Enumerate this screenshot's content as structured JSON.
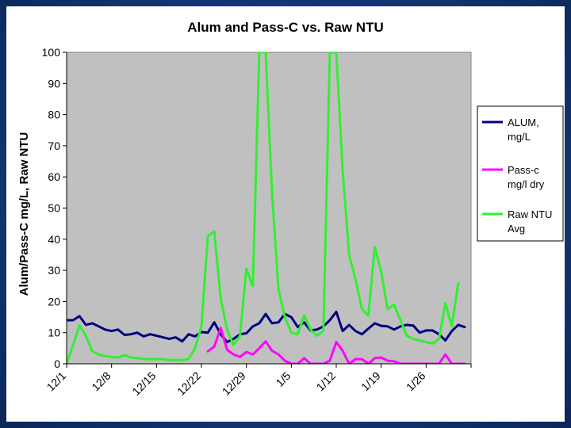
{
  "chart_data": {
    "type": "line",
    "title": "Alum and Pass-C vs. Raw NTU",
    "ylabel": "Alum/Pass-C mg/L, Raw NTU",
    "xlabel": "",
    "ylim": [
      0,
      100
    ],
    "yticks": [
      0,
      10,
      20,
      30,
      40,
      50,
      60,
      70,
      80,
      90,
      100
    ],
    "xtick_labels": [
      "12/1",
      "12/8",
      "12/15",
      "12/22",
      "12/29",
      "1/5",
      "1/12",
      "1/19",
      "1/26"
    ],
    "xtick_days": [
      0,
      7,
      14,
      21,
      28,
      35,
      42,
      49,
      56
    ],
    "x_days_range": [
      0,
      63
    ],
    "grid": false,
    "legend": "right",
    "background": "#c0c0c0",
    "series": [
      {
        "name": "ALUM, mg/L",
        "legend_lines": [
          "ALUM,",
          "mg/L"
        ],
        "color": "#000080",
        "points": [
          [
            0,
            14
          ],
          [
            1,
            14
          ],
          [
            2,
            15.3
          ],
          [
            3,
            12.5
          ],
          [
            4,
            13
          ],
          [
            5,
            12
          ],
          [
            6,
            11
          ],
          [
            7,
            10.5
          ],
          [
            8,
            11
          ],
          [
            9,
            9.3
          ],
          [
            10,
            9.5
          ],
          [
            11,
            10
          ],
          [
            12,
            8.8
          ],
          [
            13,
            9.5
          ],
          [
            14,
            9
          ],
          [
            15,
            8.5
          ],
          [
            16,
            8
          ],
          [
            17,
            8.5
          ],
          [
            18,
            7.2
          ],
          [
            19,
            9.5
          ],
          [
            20,
            8.8
          ],
          [
            21,
            10.2
          ],
          [
            22,
            10
          ],
          [
            23,
            13.3
          ],
          [
            24,
            9.5
          ],
          [
            25,
            7
          ],
          [
            26,
            8
          ],
          [
            27,
            9.5
          ],
          [
            28,
            9.8
          ],
          [
            29,
            12
          ],
          [
            30,
            13
          ],
          [
            31,
            16
          ],
          [
            32,
            13
          ],
          [
            33,
            13.3
          ],
          [
            34,
            16
          ],
          [
            35,
            15
          ],
          [
            36,
            11.8
          ],
          [
            37,
            13.3
          ],
          [
            38,
            10.7
          ],
          [
            39,
            11
          ],
          [
            40,
            12
          ],
          [
            41,
            14
          ],
          [
            42,
            16.7
          ],
          [
            43,
            10.5
          ],
          [
            44,
            12.5
          ],
          [
            45,
            10.5
          ],
          [
            46,
            9.5
          ],
          [
            47,
            11.3
          ],
          [
            48,
            13
          ],
          [
            49,
            12.2
          ],
          [
            50,
            12
          ],
          [
            51,
            11
          ],
          [
            52,
            12
          ],
          [
            53,
            12.5
          ],
          [
            54,
            12.3
          ],
          [
            55,
            10
          ],
          [
            56,
            10.7
          ],
          [
            57,
            10.7
          ],
          [
            58,
            9.5
          ],
          [
            59,
            7.5
          ],
          [
            60,
            10.5
          ],
          [
            61,
            12.5
          ],
          [
            62,
            11.8
          ]
        ]
      },
      {
        "name": "Pass-c mg/l dry",
        "legend_lines": [
          "Pass-c",
          "mg/l dry"
        ],
        "color": "#ff00ff",
        "points": [
          [
            22,
            4
          ],
          [
            23,
            5.5
          ],
          [
            24,
            11.5
          ],
          [
            25,
            4.5
          ],
          [
            26,
            3
          ],
          [
            27,
            2.2
          ],
          [
            28,
            3.8
          ],
          [
            29,
            3
          ],
          [
            30,
            5
          ],
          [
            31,
            7.2
          ],
          [
            32,
            4.2
          ],
          [
            33,
            3
          ],
          [
            34,
            1
          ],
          [
            35,
            0
          ],
          [
            36,
            0
          ],
          [
            37,
            1.8
          ],
          [
            38,
            0
          ],
          [
            39,
            0
          ],
          [
            40,
            0
          ],
          [
            41,
            1
          ],
          [
            42,
            7
          ],
          [
            43,
            4.2
          ],
          [
            44,
            0
          ],
          [
            45,
            1.5
          ],
          [
            46,
            1.5
          ],
          [
            47,
            0
          ],
          [
            48,
            1.8
          ],
          [
            49,
            2
          ],
          [
            50,
            1
          ],
          [
            51,
            0.8
          ],
          [
            52,
            0
          ],
          [
            53,
            0
          ],
          [
            54,
            0
          ],
          [
            55,
            0
          ],
          [
            56,
            0
          ],
          [
            57,
            0
          ],
          [
            58,
            0
          ],
          [
            59,
            3
          ],
          [
            60,
            0
          ],
          [
            61,
            0
          ],
          [
            62,
            0
          ]
        ]
      },
      {
        "name": "Raw NTU Avg",
        "legend_lines": [
          "Raw NTU",
          "Avg"
        ],
        "color": "#33ee33",
        "points": [
          [
            0,
            0
          ],
          [
            1,
            6
          ],
          [
            2,
            12.3
          ],
          [
            3,
            9
          ],
          [
            4,
            4
          ],
          [
            5,
            3
          ],
          [
            6,
            2.5
          ],
          [
            7,
            2.2
          ],
          [
            8,
            2
          ],
          [
            9,
            2.8
          ],
          [
            10,
            2
          ],
          [
            11,
            1.8
          ],
          [
            12,
            1.5
          ],
          [
            13,
            1.5
          ],
          [
            14,
            1.5
          ],
          [
            15,
            1.5
          ],
          [
            16,
            1.2
          ],
          [
            17,
            1.2
          ],
          [
            18,
            1.2
          ],
          [
            19,
            1.5
          ],
          [
            20,
            5
          ],
          [
            21,
            12
          ],
          [
            22,
            41
          ],
          [
            23,
            42.5
          ],
          [
            24,
            21
          ],
          [
            25,
            11
          ],
          [
            26,
            6
          ],
          [
            27,
            9
          ],
          [
            28,
            30.5
          ],
          [
            29,
            25
          ],
          [
            30,
            100
          ],
          [
            31,
            100
          ],
          [
            32,
            55
          ],
          [
            33,
            24
          ],
          [
            34,
            15
          ],
          [
            35,
            10
          ],
          [
            36,
            9.5
          ],
          [
            37,
            15.5
          ],
          [
            38,
            11
          ],
          [
            39,
            9
          ],
          [
            40,
            10.5
          ],
          [
            41,
            100
          ],
          [
            42,
            100
          ],
          [
            43,
            62
          ],
          [
            44,
            35
          ],
          [
            45,
            27
          ],
          [
            46,
            17.5
          ],
          [
            47,
            15.5
          ],
          [
            48,
            37.5
          ],
          [
            49,
            29.5
          ],
          [
            50,
            17.5
          ],
          [
            51,
            19
          ],
          [
            52,
            14
          ],
          [
            53,
            9
          ],
          [
            54,
            8
          ],
          [
            55,
            7.5
          ],
          [
            56,
            7
          ],
          [
            57,
            6.5
          ],
          [
            58,
            8
          ],
          [
            59,
            19.5
          ],
          [
            60,
            12
          ],
          [
            61,
            25.8
          ]
        ]
      }
    ]
  }
}
